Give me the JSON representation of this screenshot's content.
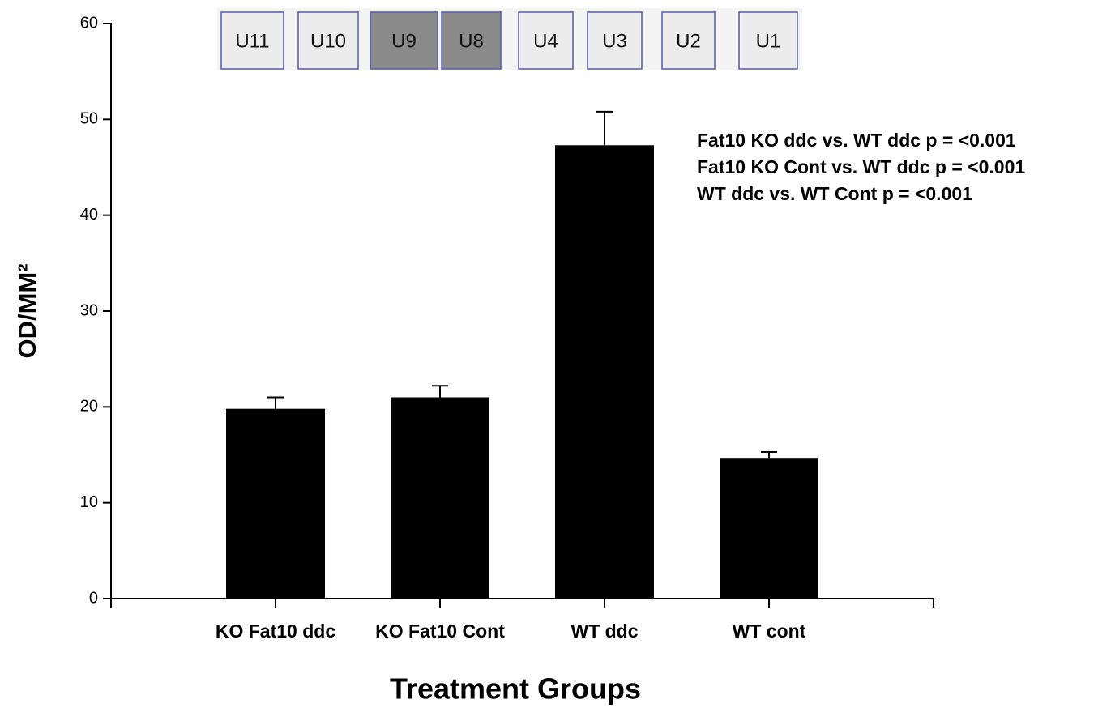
{
  "chart_data": {
    "type": "bar",
    "xlabel": "Treatment Groups",
    "ylabel": "OD/MM²",
    "categories": [
      "KO Fat10 ddc",
      "KO Fat10 Cont",
      "WT ddc",
      "WT cont"
    ],
    "values": [
      19.8,
      21.0,
      47.3,
      14.6
    ],
    "errors": [
      1.2,
      1.2,
      3.5,
      0.7
    ],
    "color": "#000000",
    "ylim": [
      0,
      60
    ],
    "yticks": [
      0,
      10,
      20,
      30,
      40,
      50,
      60
    ],
    "annotations": [
      "Fat10 KO ddc vs. WT ddc p = <0.001",
      "Fat10 KO Cont vs. WT ddc p = <0.001",
      "WT ddc vs. WT Cont p = <0.001"
    ],
    "blot_lanes": [
      "U11",
      "U10",
      "U9",
      "U8",
      "U4",
      "U3",
      "U2",
      "U1"
    ]
  }
}
